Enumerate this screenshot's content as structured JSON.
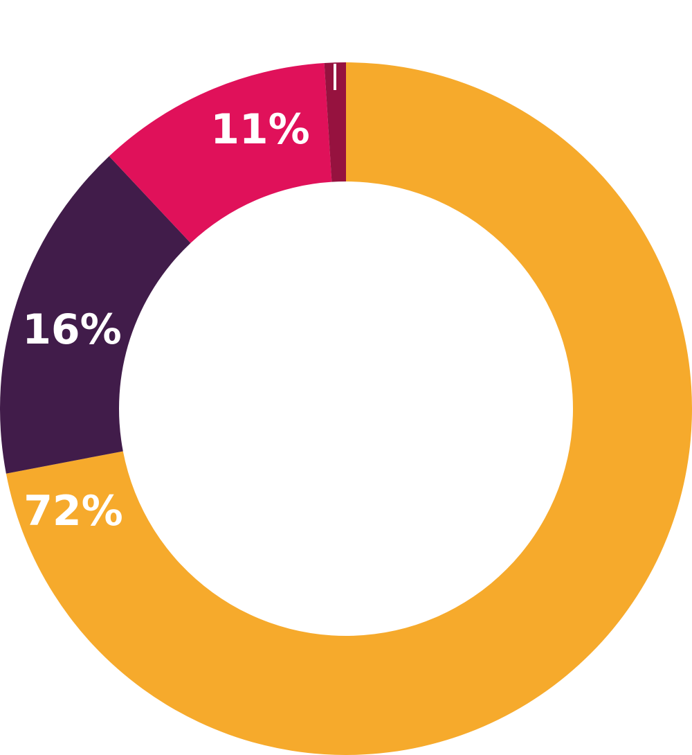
{
  "chart_data": {
    "type": "pie",
    "style": "donut",
    "slices": [
      {
        "value": 72,
        "label": "72%",
        "color": "#f6aa2c"
      },
      {
        "value": 16,
        "label": "16%",
        "color": "#411c4a"
      },
      {
        "value": 11,
        "label": "11%",
        "color": "#e0115a"
      },
      {
        "value": 1,
        "label": "",
        "color": "#96123f"
      }
    ],
    "legend": "none"
  }
}
